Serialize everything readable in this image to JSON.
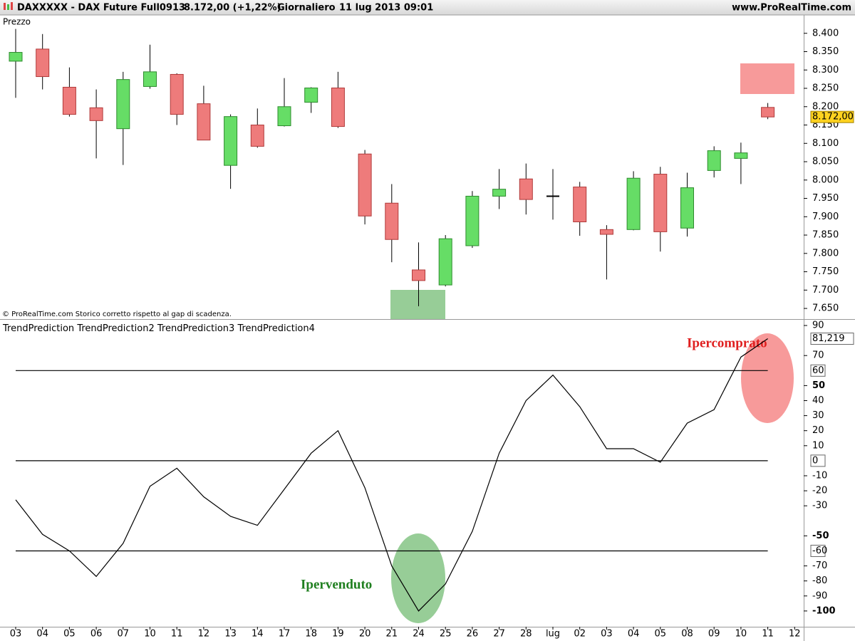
{
  "header": {
    "items": [
      "DAXXXXX - DAX Future Full0913",
      "8.172,00 (+1,22%)",
      "Giornaliero",
      "11 lug 2013 09:01"
    ],
    "site": "www.ProRealTime.com"
  },
  "chart_data": [
    {
      "type": "candlestick",
      "label": "Prezzo",
      "note": "© ProRealTime.com Storico corretto rispetto al gap di scadenza.",
      "categories": [
        "03",
        "04",
        "05",
        "06",
        "07",
        "10",
        "11",
        "12",
        "13",
        "14",
        "17",
        "18",
        "19",
        "20",
        "21",
        "24",
        "25",
        "26",
        "27",
        "28",
        "lug",
        "02",
        "03",
        "04",
        "05",
        "08",
        "09",
        "10",
        "11",
        "12"
      ],
      "open": [
        8324,
        8357,
        8253,
        8197,
        8140,
        8255,
        8288,
        8208,
        8040,
        8150,
        8148,
        8212,
        8251,
        8071,
        7937,
        7755,
        7714,
        7821,
        7956,
        8003,
        7956,
        7981,
        7865,
        7865,
        8016,
        7869,
        8026,
        8059,
        8198,
        null
      ],
      "high": [
        8412,
        8398,
        8307,
        8247,
        8295,
        8369,
        8291,
        8257,
        8179,
        8195,
        8278,
        8253,
        8295,
        8082,
        7989,
        7830,
        7850,
        7970,
        8030,
        8045,
        8030,
        7995,
        7877,
        8024,
        8036,
        8020,
        8092,
        8102,
        8210,
        null
      ],
      "low": [
        8224,
        8247,
        8173,
        8059,
        8041,
        8249,
        8150,
        8109,
        7976,
        8088,
        8146,
        8183,
        8142,
        7879,
        7776,
        7656,
        7710,
        7815,
        7921,
        7906,
        7892,
        7848,
        7729,
        7863,
        7805,
        7846,
        8007,
        7989,
        8166,
        null
      ],
      "close": [
        8348,
        8282,
        8179,
        8162,
        8274,
        8295,
        8179,
        8109,
        8173,
        8092,
        8200,
        8251,
        8146,
        7902,
        7838,
        7726,
        7840,
        7956,
        7975,
        7947,
        7956,
        7886,
        7852,
        8005,
        7859,
        7979,
        8080,
        8074,
        8172,
        null
      ],
      "value_labels": [
        null,
        null,
        null,
        null,
        null,
        null,
        null,
        null,
        null,
        null,
        null,
        null,
        null,
        null,
        null,
        null,
        null,
        null,
        null,
        null,
        null,
        null,
        null,
        null,
        null,
        null,
        null,
        null,
        "8.172,00",
        null
      ],
      "up_color": "#66dd66",
      "up_edge": "#2e8b2e",
      "down_color": "#ee7b7b",
      "down_edge": "#b03a3a",
      "doji_color": "#000000",
      "last_color": "#ffd21f",
      "ylim": [
        7621,
        8450
      ],
      "yticks": [
        {
          "value": 8400,
          "label": "8.400"
        },
        {
          "value": 8350,
          "label": "8.350"
        },
        {
          "value": 8300,
          "label": "8.300"
        },
        {
          "value": 8250,
          "label": "8.250"
        },
        {
          "value": 8200,
          "label": "8.200"
        },
        {
          "value": 8150,
          "label": "8.150"
        },
        {
          "value": 8100,
          "label": "8.100"
        },
        {
          "value": 8050,
          "label": "8.050"
        },
        {
          "value": 8000,
          "label": "8.000"
        },
        {
          "value": 7950,
          "label": "7.950"
        },
        {
          "value": 7900,
          "label": "7.900"
        },
        {
          "value": 7850,
          "label": "7.850"
        },
        {
          "value": 7800,
          "label": "7.800"
        },
        {
          "value": 7750,
          "label": "7.750"
        },
        {
          "value": 7700,
          "label": "7.700"
        },
        {
          "value": 7650,
          "label": "7.650"
        }
      ]
    },
    {
      "type": "line",
      "series": [
        {
          "name": "TrendPrediction",
          "color": "#000000",
          "values": [
            -26,
            -49,
            -60,
            -77,
            -55,
            -17,
            -5,
            -24,
            -37,
            -43,
            -19,
            5,
            20,
            -18,
            -70,
            -100,
            -82,
            -47,
            5,
            40,
            57,
            36,
            8,
            8,
            -1,
            25,
            34,
            69,
            81.219,
            null
          ],
          "value_labels": [
            null,
            null,
            null,
            null,
            null,
            null,
            null,
            null,
            null,
            null,
            null,
            null,
            null,
            null,
            null,
            null,
            null,
            null,
            null,
            null,
            null,
            null,
            null,
            null,
            null,
            null,
            null,
            null,
            "81,219",
            null
          ]
        },
        {
          "name": "TrendPrediction2",
          "color": "#000000",
          "values": [
            60,
            60,
            60,
            60,
            60,
            60,
            60,
            60,
            60,
            60,
            60,
            60,
            60,
            60,
            60,
            60,
            60,
            60,
            60,
            60,
            60,
            60,
            60,
            60,
            60,
            60,
            60,
            60,
            60,
            null
          ]
        },
        {
          "name": "TrendPrediction3",
          "color": "#000000",
          "values": [
            0,
            0,
            0,
            0,
            0,
            0,
            0,
            0,
            0,
            0,
            0,
            0,
            0,
            0,
            0,
            0,
            0,
            0,
            0,
            0,
            0,
            0,
            0,
            0,
            0,
            0,
            0,
            0,
            0,
            null
          ]
        },
        {
          "name": "TrendPrediction4",
          "color": "#000000",
          "values": [
            -60,
            -60,
            -60,
            -60,
            -60,
            -60,
            -60,
            -60,
            -60,
            -60,
            -60,
            -60,
            -60,
            -60,
            -60,
            -60,
            -60,
            -60,
            -60,
            -60,
            -60,
            -60,
            -60,
            -60,
            -60,
            -60,
            -60,
            -60,
            -60,
            null
          ]
        }
      ],
      "annotations": [
        "Ipercomprato",
        "Ipervenduto"
      ],
      "ylim": [
        -110.5,
        93.8
      ],
      "yticks": [
        90,
        70,
        50,
        40,
        30,
        20,
        10,
        -10,
        -20,
        -30,
        -50,
        -70,
        -80,
        -90,
        -100
      ]
    }
  ]
}
